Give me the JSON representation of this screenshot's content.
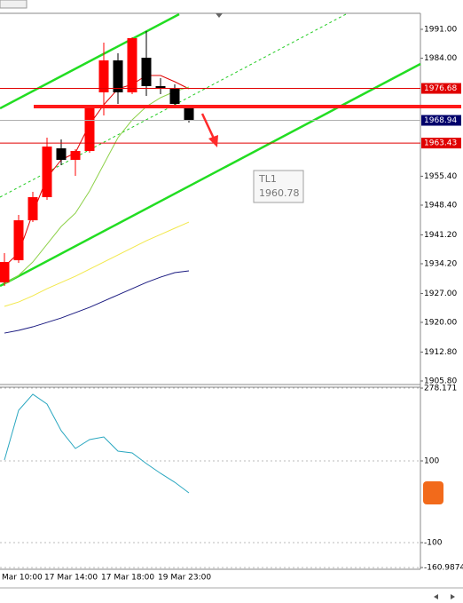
{
  "chart_data": [
    {
      "type": "candlestick",
      "categories": [
        "Mar 10:00",
        null,
        null,
        "17 Mar 14:00",
        null,
        null,
        null,
        "17 Mar 18:00",
        null,
        null,
        null,
        "19 Mar 23:00",
        null,
        null
      ],
      "open": [
        1929.67,
        1935.05,
        1944.73,
        1950.33,
        1962.16,
        1959.37,
        1961.52,
        1975.72,
        1983.47,
        1975.72,
        1984.11,
        1977.23,
        1976.58,
        1971.85
      ],
      "high": [
        1936.77,
        1946.02,
        1951.62,
        1964.75,
        1964.32,
        1961.95,
        1972.71,
        1987.77,
        1985.19,
        1989.06,
        1990.57,
        1979.16,
        1977.66,
        1972.28
      ],
      "low": [
        1928.81,
        1934.4,
        1944.3,
        1949.68,
        1958.07,
        1955.49,
        1961.09,
        1970.13,
        1972.92,
        1975.29,
        1974.86,
        1975.29,
        1972.28,
        1968.4
      ],
      "close": [
        1934.62,
        1944.73,
        1950.33,
        1962.59,
        1959.37,
        1961.52,
        1972.28,
        1983.47,
        1975.72,
        1988.85,
        1977.23,
        1976.58,
        1972.92,
        1968.94
      ],
      "up_color": "#ff0000",
      "down_color": "#000000",
      "series": [
        {
          "color": "#e00000",
          "values": [
            1933.54,
            1936.77,
            1946.45,
            1955.06,
            1959.37,
            1961.09,
            1967.97,
            1972.71,
            1976.58,
            1977.66,
            1979.81,
            1979.81,
            1978.3,
            1976.58
          ]
        },
        {
          "color": "#8ed14a",
          "values": [
            1929.24,
            1931.39,
            1934.62,
            1938.92,
            1943.23,
            1946.45,
            1951.83,
            1958.29,
            1964.75,
            1969.05,
            1972.28,
            1974.43,
            1975.94,
            1977.01
          ]
        },
        {
          "color": "#f2e84a",
          "values": [
            1923.86,
            1924.93,
            1926.44,
            1928.16,
            1929.67,
            1931.17,
            1932.9,
            1934.62,
            1936.34,
            1938.06,
            1939.78,
            1941.29,
            1942.8,
            1944.3
          ]
        },
        {
          "color": "#1a1a80",
          "values": [
            1917.4,
            1918.05,
            1918.91,
            1919.98,
            1921.06,
            1922.35,
            1923.64,
            1925.15,
            1926.66,
            1928.16,
            1929.67,
            1930.96,
            1932.04,
            1932.47
          ]
        }
      ],
      "hlines": [
        {
          "value": 1976.68,
          "color": "#e00000",
          "label_color": "#e00000"
        },
        {
          "value": 1968.94,
          "color": "#b0b0b0",
          "label_color": "#00006b"
        },
        {
          "value": 1963.43,
          "color": "#e00000",
          "label_color": "#e00000"
        }
      ],
      "annotation": {
        "title": "TL1",
        "value": 1960.78
      },
      "ylim": [
        1905.15,
        1994.87
      ],
      "yticks": [
        {
          "value": 1991,
          "label": "1991.00"
        },
        {
          "value": 1984,
          "label": "1984.00"
        },
        {
          "value": 1955.4,
          "label": "1955.40"
        },
        {
          "value": 1948.4,
          "label": "1948.40"
        },
        {
          "value": 1941.2,
          "label": "1941.20"
        },
        {
          "value": 1934.2,
          "label": "1934.20"
        },
        {
          "value": 1927,
          "label": "1927.00"
        },
        {
          "value": 1920,
          "label": "1920.00"
        },
        {
          "value": 1912.8,
          "label": "1912.80"
        },
        {
          "value": 1905.8,
          "label": "1905.80"
        }
      ]
    },
    {
      "type": "line",
      "series": [
        {
          "color": "#2aa7c0",
          "values": [
            102.2,
            223.9,
            263.1,
            239.1,
            173.9,
            130.4,
            152.2,
            158.7,
            123.9,
            119.6,
            93.5,
            69.6,
            47.8,
            21.7
          ]
        }
      ],
      "ylim": [
        -163,
        280.4
      ],
      "yticks": [
        278.171,
        100,
        -100,
        -160.9874
      ]
    }
  ]
}
